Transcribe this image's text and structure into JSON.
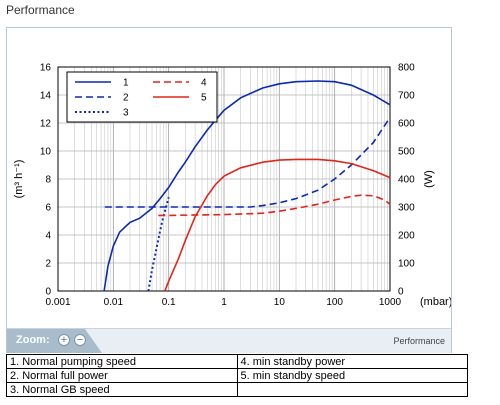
{
  "page_title": "Performance",
  "zoom_label": "Zoom:",
  "zoom_in": "+",
  "zoom_out": "−",
  "tab_label": "Performance",
  "legend_rows": [
    [
      "1. Normal pumping speed",
      "4. min standby power"
    ],
    [
      "2. Normal full power",
      "5. min standby speed"
    ],
    [
      "3. Normal GB speed",
      ""
    ]
  ],
  "chart_data": {
    "type": "line",
    "x_scale": "log",
    "xlim": [
      0.001,
      1000
    ],
    "ylim": [
      0,
      16
    ],
    "y2lim": [
      0,
      800
    ],
    "x_tick_labels": [
      "0.001",
      "0.01",
      "0.1",
      "1",
      "10",
      "100",
      "1000"
    ],
    "x_unit": "(mbar)",
    "ylabel": "(m³ h⁻¹)",
    "y2label": "(W)",
    "y_tick_labels": [
      "0",
      "2",
      "4",
      "6",
      "8",
      "10",
      "12",
      "14",
      "16"
    ],
    "y2_tick_labels": [
      "0",
      "100",
      "200",
      "300",
      "400",
      "500",
      "600",
      "700",
      "800"
    ],
    "grid": true,
    "legend_placement": "top-left",
    "series": [
      {
        "name": "1",
        "axis": "left",
        "style": "solid",
        "color": "#0a2ab0",
        "x": [
          0.0068,
          0.008,
          0.01,
          0.013,
          0.02,
          0.03,
          0.05,
          0.07,
          0.1,
          0.15,
          0.2,
          0.3,
          0.5,
          0.7,
          1,
          2,
          5,
          10,
          20,
          50,
          100,
          200,
          500,
          1000
        ],
        "y": [
          0,
          1.8,
          3.2,
          4.2,
          4.9,
          5.2,
          5.9,
          6.6,
          7.4,
          8.5,
          9.2,
          10.3,
          11.5,
          12.2,
          12.9,
          13.8,
          14.5,
          14.8,
          14.95,
          15.0,
          14.95,
          14.7,
          14.0,
          13.3
        ]
      },
      {
        "name": "2",
        "axis": "right",
        "style": "dashed",
        "color": "#0a2ab0",
        "x": [
          0.007,
          0.01,
          0.1,
          1,
          3,
          5,
          10,
          20,
          50,
          100,
          200,
          500,
          1000
        ],
        "y": [
          300,
          300,
          300,
          300,
          300,
          305,
          315,
          330,
          360,
          400,
          450,
          530,
          620
        ]
      },
      {
        "name": "3",
        "axis": "left",
        "style": "dotted",
        "color": "#0a2ab0",
        "x": [
          0.043,
          0.05,
          0.06,
          0.07,
          0.08,
          0.09,
          0.1
        ],
        "y": [
          0,
          1.5,
          3.0,
          4.3,
          5.3,
          6.0,
          6.7
        ]
      },
      {
        "name": "4",
        "axis": "right",
        "style": "dashed",
        "color": "#e0261a",
        "x": [
          0.065,
          0.1,
          1,
          5,
          10,
          20,
          50,
          100,
          200,
          300,
          500,
          800,
          1000
        ],
        "y": [
          270,
          270,
          273,
          278,
          285,
          295,
          310,
          325,
          338,
          342,
          340,
          325,
          310
        ]
      },
      {
        "name": "5",
        "axis": "left",
        "style": "solid",
        "color": "#e0261a",
        "x": [
          0.085,
          0.1,
          0.15,
          0.2,
          0.3,
          0.5,
          0.7,
          1,
          2,
          5,
          10,
          20,
          50,
          100,
          200,
          500,
          1000
        ],
        "y": [
          0,
          0.7,
          2.3,
          3.6,
          5.3,
          6.8,
          7.6,
          8.2,
          8.8,
          9.2,
          9.35,
          9.4,
          9.4,
          9.3,
          9.1,
          8.6,
          8.1
        ]
      }
    ]
  }
}
